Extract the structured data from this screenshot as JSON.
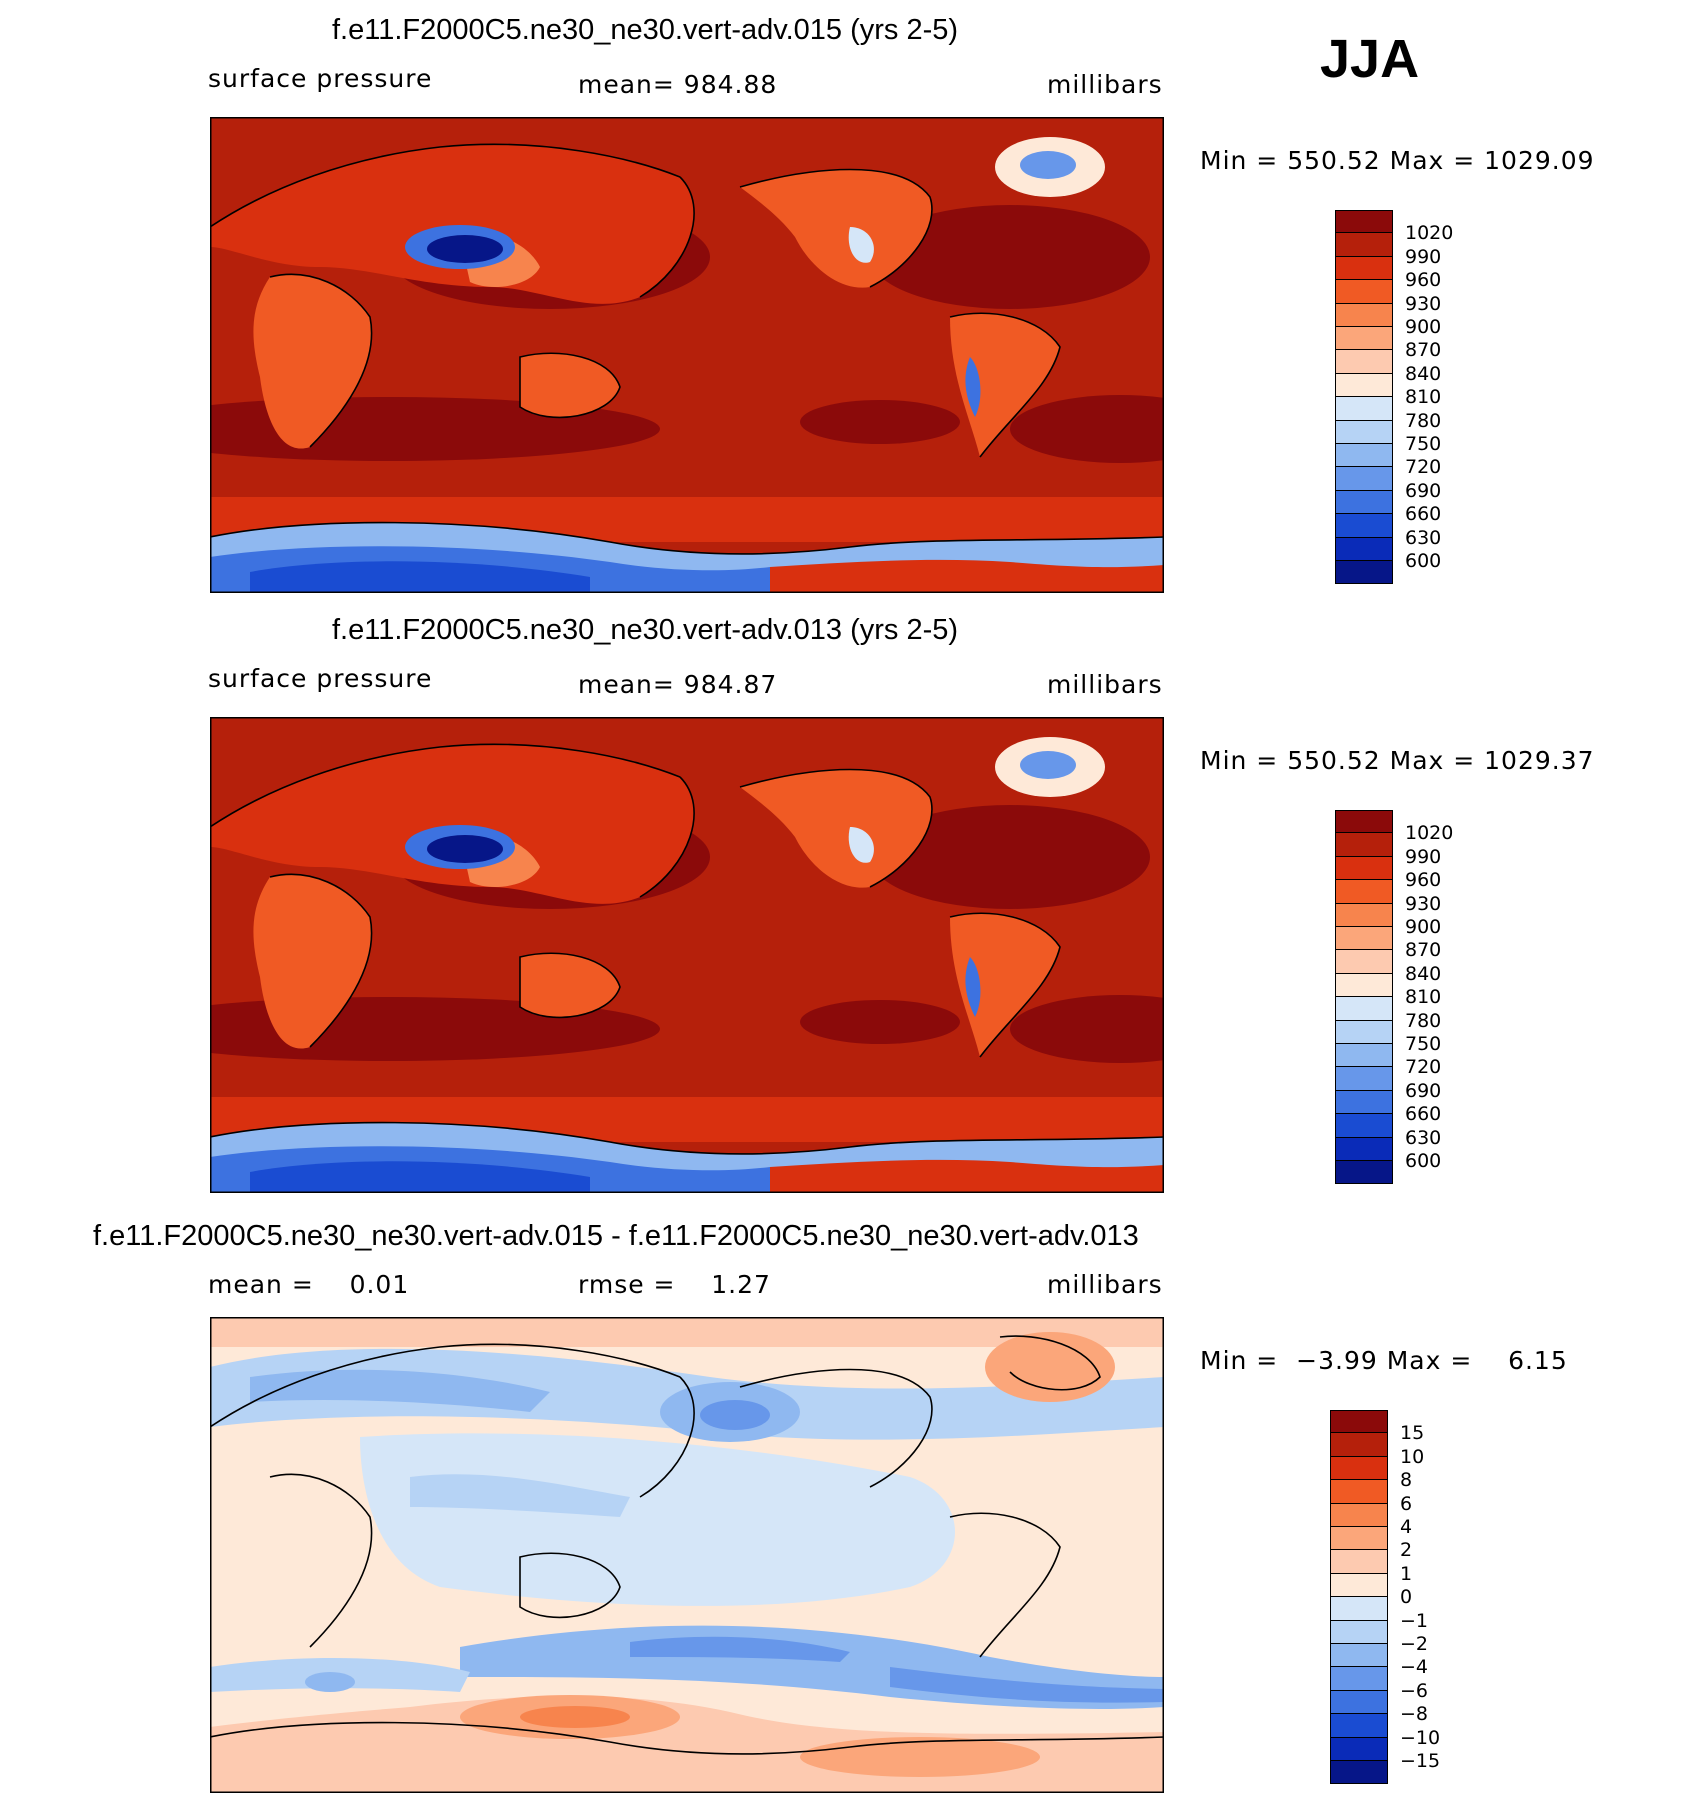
{
  "season": "JJA",
  "panels": [
    {
      "title": "f.e11.F2000C5.ne30_ne30.vert-adv.015 (yrs 2-5)",
      "left_label": "surface pressure",
      "center_label": "mean= 984.88",
      "units": "millibars",
      "minmax": "Min = 550.52 Max = 1029.09",
      "colorbar": {
        "labels": [
          "1020",
          "990",
          "960",
          "930",
          "900",
          "870",
          "840",
          "810",
          "780",
          "750",
          "720",
          "690",
          "660",
          "630",
          "600"
        ],
        "colors": [
          "#8b0a0a",
          "#b5200b",
          "#d9300f",
          "#f05a24",
          "#f7844d",
          "#fba67a",
          "#fdcab0",
          "#fee9d8",
          "#d5e6f8",
          "#b6d3f5",
          "#8fb8f0",
          "#6797ea",
          "#3d72e0",
          "#1a4cd2",
          "#0a2bb8",
          "#061688"
        ]
      }
    },
    {
      "title": "f.e11.F2000C5.ne30_ne30.vert-adv.013 (yrs 2-5)",
      "left_label": "surface pressure",
      "center_label": "mean= 984.87",
      "units": "millibars",
      "minmax": "Min = 550.52 Max = 1029.37",
      "colorbar": {
        "labels": [
          "1020",
          "990",
          "960",
          "930",
          "900",
          "870",
          "840",
          "810",
          "780",
          "750",
          "720",
          "690",
          "660",
          "630",
          "600"
        ],
        "colors": [
          "#8b0a0a",
          "#b5200b",
          "#d9300f",
          "#f05a24",
          "#f7844d",
          "#fba67a",
          "#fdcab0",
          "#fee9d8",
          "#d5e6f8",
          "#b6d3f5",
          "#8fb8f0",
          "#6797ea",
          "#3d72e0",
          "#1a4cd2",
          "#0a2bb8",
          "#061688"
        ]
      }
    },
    {
      "title": "f.e11.F2000C5.ne30_ne30.vert-adv.015 - f.e11.F2000C5.ne30_ne30.vert-adv.013",
      "left_label": "mean =    0.01",
      "center_label": "rmse =    1.27",
      "units": "millibars",
      "minmax": "Min =  −3.99 Max =    6.15",
      "colorbar": {
        "labels": [
          "15",
          "10",
          "8",
          "6",
          "4",
          "2",
          "1",
          "0",
          "−1",
          "−2",
          "−4",
          "−6",
          "−8",
          "−10",
          "−15"
        ],
        "colors": [
          "#8b0a0a",
          "#b5200b",
          "#d9300f",
          "#f05a24",
          "#f7844d",
          "#fba67a",
          "#fdcab0",
          "#fee9d8",
          "#d5e6f8",
          "#b6d3f5",
          "#8fb8f0",
          "#6797ea",
          "#3d72e0",
          "#1a4cd2",
          "#0a2bb8",
          "#061688"
        ]
      }
    }
  ]
}
